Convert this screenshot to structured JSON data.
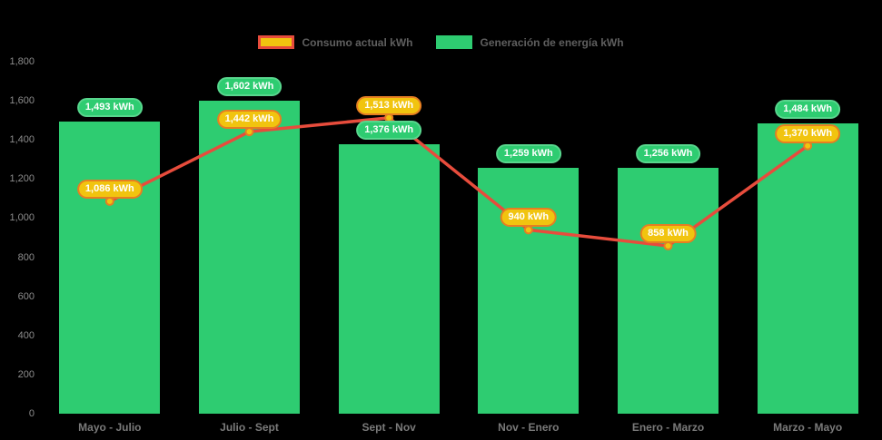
{
  "colors": {
    "background": "#000000",
    "bar_green": "#2ecc71",
    "line_red": "#e74c3c",
    "marker_fill": "#f1c40f",
    "marker_border": "#e67e22",
    "green_pill_bg": "#2ecc71",
    "green_pill_border": "#58d68d",
    "orange_pill_bg": "#f1c40f",
    "orange_pill_border": "#e67e22",
    "axis_text": "#8c8c8c",
    "category_text": "#7a7a7a",
    "legend_text": "#5f5f5f"
  },
  "legend": {
    "items": [
      {
        "label": "Consumo actual kWh",
        "swatch_fill": "#f1c40f",
        "swatch_border": "#e74c3c"
      },
      {
        "label": "Generación de energía kWh",
        "swatch_fill": "#2ecc71",
        "swatch_border": "#2ecc71"
      }
    ]
  },
  "chart_data": {
    "type": "bar",
    "subtype": "bar-line-combo",
    "title": "",
    "xlabel": "",
    "ylabel": "",
    "categories": [
      "Mayo - Julio",
      "Julio - Sept",
      "Sept - Nov",
      "Nov - Enero",
      "Enero - Marzo",
      "Marzo - Mayo"
    ],
    "series": [
      {
        "name": "Generación de energía kWh",
        "type": "bar",
        "color": "#2ecc71",
        "values": [
          1493,
          1602,
          1376,
          1259,
          1256,
          1484
        ],
        "labels": [
          "1,493 kWh",
          "1,602 kWh",
          "1,376 kWh",
          "1,259 kWh",
          "1,256 kWh",
          "1,484 kWh"
        ]
      },
      {
        "name": "Consumo actual kWh",
        "type": "line",
        "color": "#e74c3c",
        "marker_fill": "#f1c40f",
        "marker_border": "#e67e22",
        "values": [
          1086,
          1442,
          1513,
          940,
          858,
          1370
        ],
        "labels": [
          "1,086 kWh",
          "1,442 kWh",
          "1,513 kWh",
          "940 kWh",
          "858 kWh",
          "1,370 kWh"
        ]
      }
    ],
    "y_axis": {
      "min": 0,
      "max": 1800,
      "tick_step": 200,
      "tick_labels": [
        "0",
        "200",
        "400",
        "600",
        "800",
        "1,000",
        "1,200",
        "1,400",
        "1,600",
        "1,800"
      ]
    },
    "grid": false,
    "legend_position": "top"
  }
}
